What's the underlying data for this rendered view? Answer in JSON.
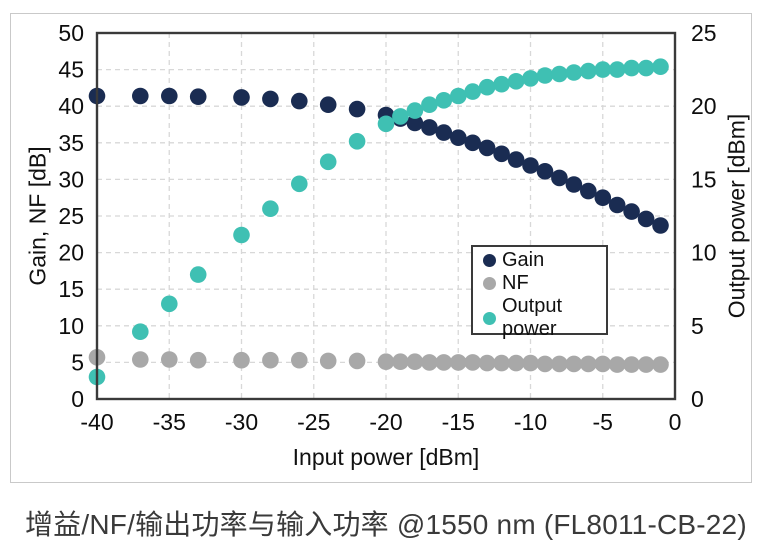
{
  "caption": "增益/NF/输出功率与输入功率 @1550 nm (FL8011-CB-22)",
  "chart_data": {
    "type": "scatter",
    "xlabel": "Input power [dBm]",
    "ylabel_left": "Gain, NF [dB]",
    "ylabel_right": "Output power [dBm]",
    "xlim": [
      -40,
      0
    ],
    "ylim_left": [
      0,
      50
    ],
    "ylim_right": [
      0,
      25
    ],
    "xticks": [
      -40,
      -35,
      -30,
      -25,
      -20,
      -15,
      -10,
      -5,
      0
    ],
    "yticks_left": [
      0,
      5,
      10,
      15,
      20,
      25,
      30,
      35,
      40,
      45,
      50
    ],
    "yticks_right": [
      0,
      5,
      10,
      15,
      20,
      25
    ],
    "grid": true,
    "legend_position": "inside-lower-right",
    "x": [
      -40,
      -37,
      -35,
      -33,
      -30,
      -28,
      -26,
      -24,
      -22,
      -20,
      -19,
      -18,
      -17,
      -16,
      -15,
      -14,
      -13,
      -12,
      -11,
      -10,
      -9,
      -8,
      -7,
      -6,
      -5,
      -4,
      -3,
      -2,
      -1
    ],
    "series": [
      {
        "name": "Gain",
        "axis": "left",
        "color": "#1a2c52",
        "values": [
          41.4,
          41.4,
          41.4,
          41.3,
          41.2,
          41.0,
          40.7,
          40.2,
          39.6,
          38.8,
          38.3,
          37.7,
          37.1,
          36.4,
          35.7,
          35.0,
          34.3,
          33.5,
          32.7,
          31.9,
          31.1,
          30.2,
          29.3,
          28.4,
          27.5,
          26.5,
          25.6,
          24.6,
          23.7
        ]
      },
      {
        "name": "NF",
        "axis": "left",
        "color": "#a8a8a8",
        "values": [
          5.7,
          5.4,
          5.4,
          5.3,
          5.3,
          5.3,
          5.3,
          5.2,
          5.2,
          5.1,
          5.1,
          5.1,
          5.0,
          5.0,
          5.0,
          5.0,
          4.9,
          4.9,
          4.9,
          4.9,
          4.8,
          4.8,
          4.8,
          4.8,
          4.8,
          4.7,
          4.7,
          4.7,
          4.7
        ]
      },
      {
        "name": "Output power",
        "axis": "right",
        "color": "#3fc0b3",
        "values": [
          1.5,
          4.6,
          6.5,
          8.5,
          11.2,
          13.0,
          14.7,
          16.2,
          17.6,
          18.8,
          19.3,
          19.7,
          20.1,
          20.4,
          20.7,
          21.0,
          21.3,
          21.5,
          21.7,
          21.9,
          22.1,
          22.2,
          22.3,
          22.4,
          22.5,
          22.5,
          22.6,
          22.6,
          22.7
        ]
      }
    ]
  },
  "legend": {
    "items": [
      {
        "label": "Gain",
        "color": "#1a2c52"
      },
      {
        "label": "NF",
        "color": "#a8a8a8"
      },
      {
        "label": "Output power",
        "color": "#3fc0b3"
      }
    ]
  },
  "style": {
    "marker_radius": 8.3,
    "grid_color": "#d8d8d8",
    "frame_color": "#3a3a3a",
    "tick_color": "#0d0d0d"
  }
}
